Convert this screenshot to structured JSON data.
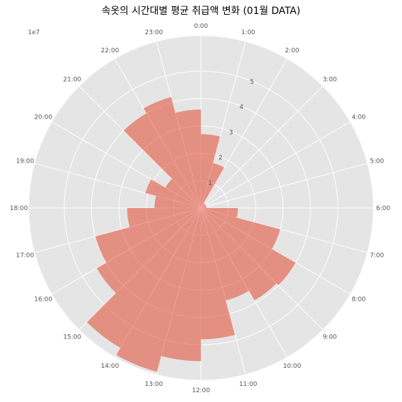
{
  "chart_data": {
    "type": "bar",
    "projection": "polar",
    "title": "속옷의 시간대별 평균 취급액 변화 (01월 DATA)",
    "offset_label": "1e7",
    "categories": [
      "0:00",
      "1:00",
      "2:00",
      "3:00",
      "4:00",
      "5:00",
      "6:00",
      "7:00",
      "8:00",
      "9:00",
      "10:00",
      "11:00",
      "12:00",
      "13:00",
      "14:00",
      "15:00",
      "16:00",
      "17:00",
      "18:00",
      "19:00",
      "20:00",
      "21:00",
      "22:00",
      "23:00"
    ],
    "values": [
      2.7,
      1.7,
      0.2,
      0.2,
      0.2,
      0.2,
      1.35,
      3.0,
      4.0,
      3.9,
      3.5,
      4.8,
      5.6,
      6.2,
      5.9,
      4.4,
      4.0,
      2.7,
      1.7,
      2.1,
      1.5,
      4.0,
      4.2,
      3.6
    ],
    "rticks": [
      "1",
      "2",
      "3",
      "4",
      "5"
    ],
    "rmax": 6.3,
    "direction": "clockwise",
    "zero_location": "top",
    "bar_color": "#E24A33",
    "bar_alpha": 0.55,
    "background": "#E5E5E5",
    "grid": true
  }
}
